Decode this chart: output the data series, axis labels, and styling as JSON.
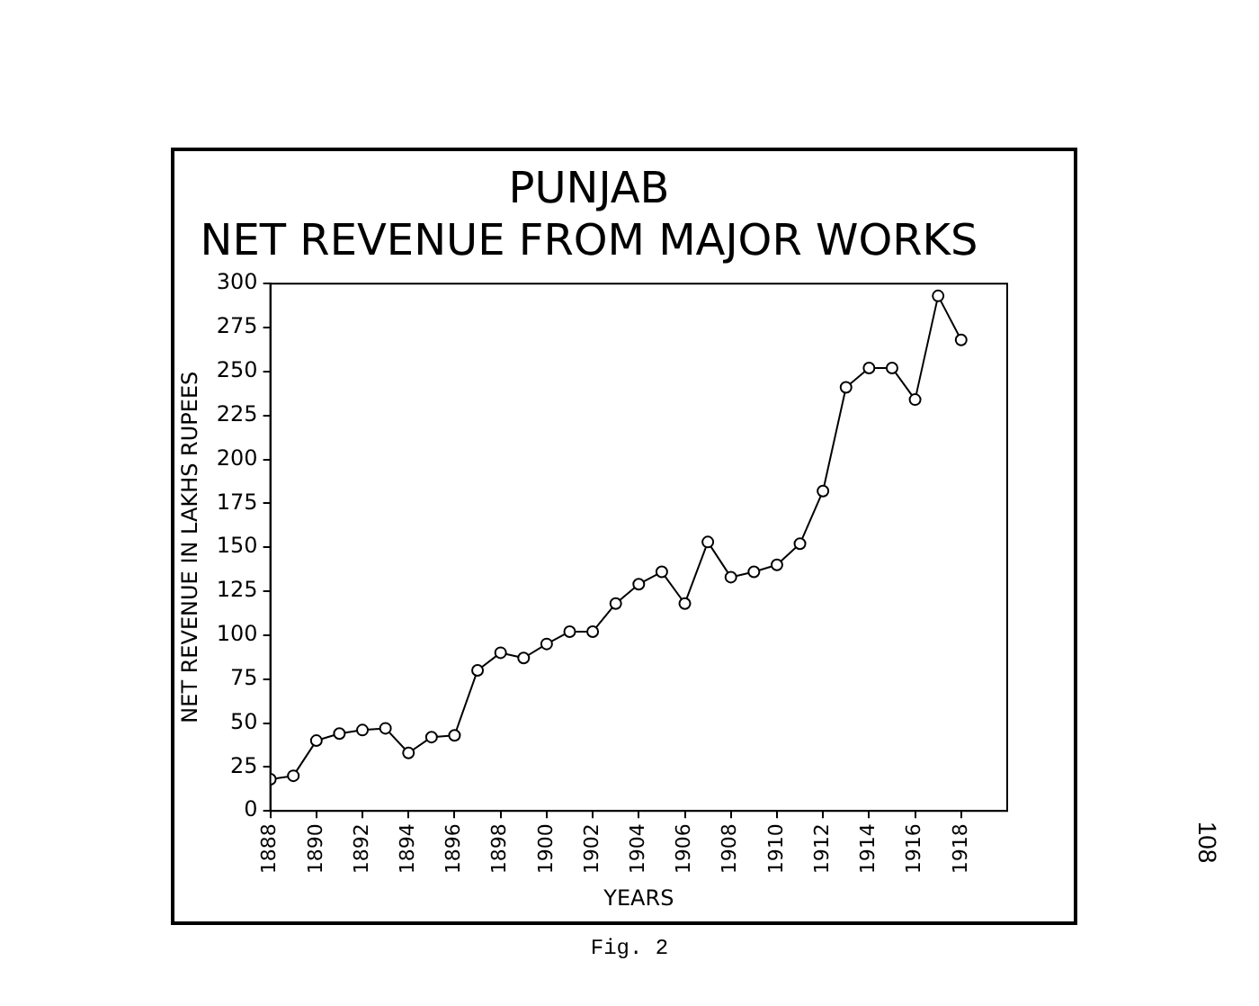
{
  "chart_data": {
    "type": "line",
    "title": "PUNJAB",
    "subtitle": "NET REVENUE FROM MAJOR WORKS",
    "xlabel": "YEARS",
    "ylabel": "NET REVENUE IN LAKHS RUPEES",
    "x": [
      1888,
      1889,
      1890,
      1891,
      1892,
      1893,
      1894,
      1895,
      1896,
      1897,
      1898,
      1899,
      1900,
      1901,
      1902,
      1903,
      1904,
      1905,
      1906,
      1907,
      1908,
      1909,
      1910,
      1911,
      1912,
      1913,
      1914,
      1915,
      1916,
      1917,
      1918
    ],
    "series": [
      {
        "color": "#000000",
        "values": [
          18,
          20,
          40,
          44,
          46,
          47,
          33,
          42,
          43,
          80,
          90,
          87,
          95,
          102,
          102,
          118,
          129,
          136,
          118,
          153,
          133,
          136,
          140,
          152,
          182,
          241,
          252,
          252,
          234,
          293,
          268
        ]
      }
    ],
    "xlim": [
      1888,
      1920
    ],
    "xticks": [
      1888,
      1890,
      1892,
      1894,
      1896,
      1898,
      1900,
      1902,
      1904,
      1906,
      1908,
      1910,
      1912,
      1914,
      1916,
      1918
    ],
    "ylim": [
      0,
      300
    ],
    "yticks": [
      0,
      25,
      50,
      75,
      100,
      125,
      150,
      175,
      200,
      225,
      250,
      275,
      300
    ],
    "grid": false,
    "legend": false,
    "marker": "circle",
    "line_style": "solid",
    "annotations": [
      "Fig. 2",
      "108"
    ]
  }
}
